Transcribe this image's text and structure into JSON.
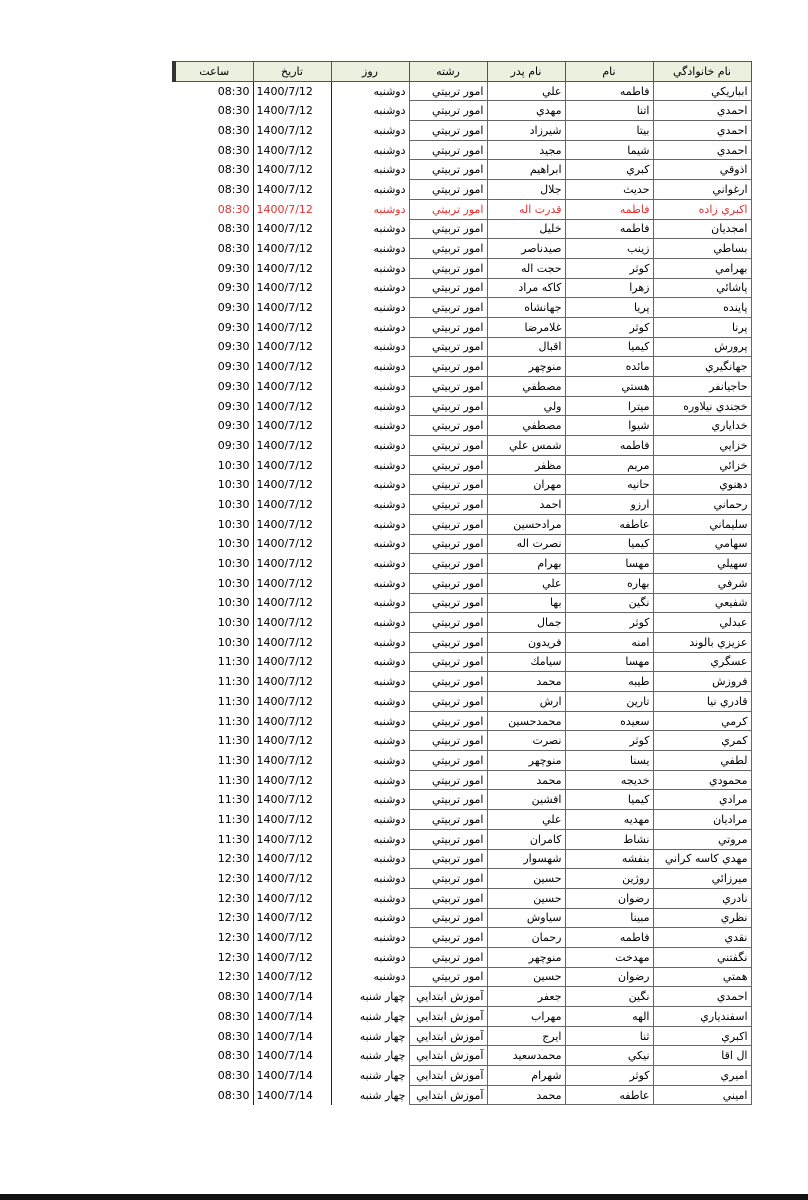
{
  "table": {
    "headers": [
      "نام خانوادگي",
      "نام",
      "نام پدر",
      "رشته",
      "روز",
      "تاريخ",
      "ساعت"
    ],
    "highlight_color": "#e03030",
    "highlighted_rows": [
      6
    ],
    "rows": [
      [
        "ابباريكي",
        "فاطمه",
        "علي",
        "امور تربيتي",
        "دوشنبه",
        "1400/7/12",
        "08:30"
      ],
      [
        "احمدي",
        "اتنا",
        "مهدي",
        "امور تربيتي",
        "دوشنبه",
        "1400/7/12",
        "08:30"
      ],
      [
        "احمدي",
        "بيتا",
        "شيرزاد",
        "امور تربيتي",
        "دوشنبه",
        "1400/7/12",
        "08:30"
      ],
      [
        "احمدي",
        "شيما",
        "مجيد",
        "امور تربيتي",
        "دوشنبه",
        "1400/7/12",
        "08:30"
      ],
      [
        "اذوقي",
        "كبري",
        "ابراهيم",
        "امور تربيتي",
        "دوشنبه",
        "1400/7/12",
        "08:30"
      ],
      [
        "ارغواني",
        "حديث",
        "جلال",
        "امور تربيتي",
        "دوشنبه",
        "1400/7/12",
        "08:30"
      ],
      [
        "اكبري زاده",
        "فاطمه",
        "قدرت اله",
        "امور تربيتي",
        "دوشنبه",
        "1400/7/12",
        "08:30"
      ],
      [
        "امجديان",
        "فاطمه",
        "خليل",
        "امور تربيتي",
        "دوشنبه",
        "1400/7/12",
        "08:30"
      ],
      [
        "بساطي",
        "زينب",
        "صيدناصر",
        "امور تربيتي",
        "دوشنبه",
        "1400/7/12",
        "08:30"
      ],
      [
        "بهرامي",
        "كوثر",
        "حجت اله",
        "امور تربيتي",
        "دوشنبه",
        "1400/7/12",
        "09:30"
      ],
      [
        "پاشائي",
        "زهرا",
        "كاكه مراد",
        "امور تربيتي",
        "دوشنبه",
        "1400/7/12",
        "09:30"
      ],
      [
        "پاينده",
        "پريا",
        "جهانشاه",
        "امور تربيتي",
        "دوشنبه",
        "1400/7/12",
        "09:30"
      ],
      [
        "پرنا",
        "كوثر",
        "غلامرضا",
        "امور تربيتي",
        "دوشنبه",
        "1400/7/12",
        "09:30"
      ],
      [
        "پرورش",
        "كيميا",
        "اقبال",
        "امور تربيتي",
        "دوشنبه",
        "1400/7/12",
        "09:30"
      ],
      [
        "جهانگيري",
        "مائده",
        "منوچهر",
        "امور تربيتي",
        "دوشنبه",
        "1400/7/12",
        "09:30"
      ],
      [
        "حاجيانفر",
        "هستي",
        "مصطفي",
        "امور تربيتي",
        "دوشنبه",
        "1400/7/12",
        "09:30"
      ],
      [
        "خجندي نيلاوره",
        "ميترا",
        "ولي",
        "امور تربيتي",
        "دوشنبه",
        "1400/7/12",
        "09:30"
      ],
      [
        "خداياري",
        "شيوا",
        "مصطفي",
        "امور تربيتي",
        "دوشنبه",
        "1400/7/12",
        "09:30"
      ],
      [
        "خزايي",
        "فاطمه",
        "شمس علي",
        "امور تربيتي",
        "دوشنبه",
        "1400/7/12",
        "09:30"
      ],
      [
        "خزائي",
        "مريم",
        "مظفر",
        "امور تربيتي",
        "دوشنبه",
        "1400/7/12",
        "10:30"
      ],
      [
        "دهنوي",
        "حانيه",
        "مهران",
        "امور تربيتي",
        "دوشنبه",
        "1400/7/12",
        "10:30"
      ],
      [
        "رحماني",
        "ارزو",
        "احمد",
        "امور تربيتي",
        "دوشنبه",
        "1400/7/12",
        "10:30"
      ],
      [
        "سليماني",
        "عاطفه",
        "مرادحسين",
        "امور تربيتي",
        "دوشنبه",
        "1400/7/12",
        "10:30"
      ],
      [
        "سهامي",
        "كيميا",
        "نصرت اله",
        "امور تربيتي",
        "دوشنبه",
        "1400/7/12",
        "10:30"
      ],
      [
        "سهيلي",
        "مهسا",
        "بهرام",
        "امور تربيتي",
        "دوشنبه",
        "1400/7/12",
        "10:30"
      ],
      [
        "شرفي",
        "بهاره",
        "علي",
        "امور تربيتي",
        "دوشنبه",
        "1400/7/12",
        "10:30"
      ],
      [
        "شفيعي",
        "نگين",
        "بها",
        "امور تربيتي",
        "دوشنبه",
        "1400/7/12",
        "10:30"
      ],
      [
        "عبدلي",
        "كوثر",
        "جمال",
        "امور تربيتي",
        "دوشنبه",
        "1400/7/12",
        "10:30"
      ],
      [
        "عزيزي بالوند",
        "امنه",
        "فريدون",
        "امور تربيتي",
        "دوشنبه",
        "1400/7/12",
        "10:30"
      ],
      [
        "عسگري",
        "مهسا",
        "سيامك",
        "امور تربيتي",
        "دوشنبه",
        "1400/7/12",
        "11:30"
      ],
      [
        "فروزش",
        "طيبه",
        "محمد",
        "امور تربيتي",
        "دوشنبه",
        "1400/7/12",
        "11:30"
      ],
      [
        "قادري نيا",
        "تارين",
        "ارش",
        "امور تربيتي",
        "دوشنبه",
        "1400/7/12",
        "11:30"
      ],
      [
        "كرمي",
        "سعيده",
        "محمدحسين",
        "امور تربيتي",
        "دوشنبه",
        "1400/7/12",
        "11:30"
      ],
      [
        "كمري",
        "كوثر",
        "نصرت",
        "امور تربيتي",
        "دوشنبه",
        "1400/7/12",
        "11:30"
      ],
      [
        "لطفي",
        "يسنا",
        "منوچهر",
        "امور تربيتي",
        "دوشنبه",
        "1400/7/12",
        "11:30"
      ],
      [
        "محمودي",
        "خديجه",
        "محمد",
        "امور تربيتي",
        "دوشنبه",
        "1400/7/12",
        "11:30"
      ],
      [
        "مرادي",
        "كيميا",
        "افشين",
        "امور تربيتي",
        "دوشنبه",
        "1400/7/12",
        "11:30"
      ],
      [
        "مراديان",
        "مهديه",
        "علي",
        "امور تربيتي",
        "دوشنبه",
        "1400/7/12",
        "11:30"
      ],
      [
        "مروتي",
        "نشاط",
        "كامران",
        "امور تربيتي",
        "دوشنبه",
        "1400/7/12",
        "11:30"
      ],
      [
        "مهدي كاسه كراني",
        "بنفشه",
        "شهسوار",
        "امور تربيتي",
        "دوشنبه",
        "1400/7/12",
        "12:30"
      ],
      [
        "ميرزائي",
        "روژين",
        "حسين",
        "امور تربيتي",
        "دوشنبه",
        "1400/7/12",
        "12:30"
      ],
      [
        "نادري",
        "رضوان",
        "حسين",
        "امور تربيتي",
        "دوشنبه",
        "1400/7/12",
        "12:30"
      ],
      [
        "نظري",
        "مبينا",
        "سياوش",
        "امور تربيتي",
        "دوشنبه",
        "1400/7/12",
        "12:30"
      ],
      [
        "نقدي",
        "فاطمه",
        "رحمان",
        "امور تربيتي",
        "دوشنبه",
        "1400/7/12",
        "12:30"
      ],
      [
        "نگفتني",
        "مهدخت",
        "منوچهر",
        "امور تربيتي",
        "دوشنبه",
        "1400/7/12",
        "12:30"
      ],
      [
        "همتي",
        "رضوان",
        "حسين",
        "امور تربيتي",
        "دوشنبه",
        "1400/7/12",
        "12:30"
      ],
      [
        "احمدي",
        "نگين",
        "جعفر",
        "آموزش ابتدايي",
        "چهار شنبه",
        "1400/7/14",
        "08:30"
      ],
      [
        "اسفندياري",
        "الهه",
        "مهراب",
        "آموزش ابتدايي",
        "چهار شنبه",
        "1400/7/14",
        "08:30"
      ],
      [
        "اكبري",
        "ثنا",
        "ايرج",
        "آموزش ابتدايي",
        "چهار شنبه",
        "1400/7/14",
        "08:30"
      ],
      [
        "ال اقا",
        "نيكي",
        "محمدسعيد",
        "آموزش ابتدايي",
        "چهار شنبه",
        "1400/7/14",
        "08:30"
      ],
      [
        "اميري",
        "كوثر",
        "شهرام",
        "آموزش ابتدايي",
        "چهار شنبه",
        "1400/7/14",
        "08:30"
      ],
      [
        "اميني",
        "عاطفه",
        "محمد",
        "آموزش ابتدايي",
        "چهار شنبه",
        "1400/7/14",
        "08:30"
      ]
    ]
  }
}
